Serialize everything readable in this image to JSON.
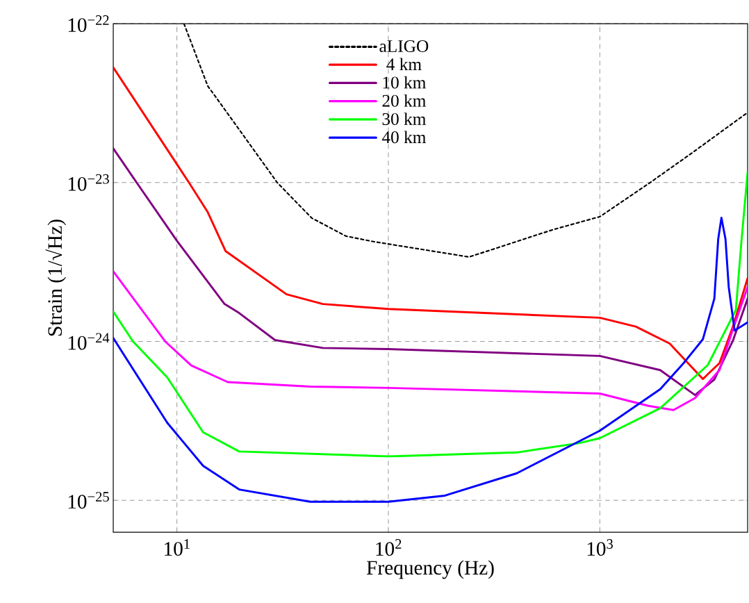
{
  "chart_data": {
    "type": "line",
    "xlabel": "Frequency (Hz)",
    "ylabel": "Strain (1/√Hz)",
    "log": "xy",
    "grid": true,
    "legend": "top",
    "marker": "none",
    "xlim": [
      5,
      5000
    ],
    "ylim": [
      6.3e-26,
      1e-22
    ],
    "xticks": [
      {
        "value": 10,
        "label": "10$^{1}$"
      },
      {
        "value": 100,
        "label": "10$^{2}$"
      },
      {
        "value": 1000,
        "label": "10$^{3}$"
      }
    ],
    "yticks": [
      {
        "value": 1e-25,
        "label": "10$^{−25}$"
      },
      {
        "value": 1e-24,
        "label": "10$^{−24}$"
      },
      {
        "value": 1e-23,
        "label": "10$^{−23}$"
      },
      {
        "value": 1e-22,
        "label": "10$^{−22}$"
      }
    ],
    "series": [
      {
        "name": "aLIGO",
        "color": "#000000",
        "line_style": "dotted",
        "x": [
          10.8,
          14,
          20.4,
          29.8,
          43.4,
          63,
          85,
          241,
          600,
          1000,
          1730,
          2700,
          5000
        ],
        "values": [
          1e-22,
          4.05e-23,
          2.02e-23,
          1e-23,
          5.98e-24,
          4.6e-24,
          4.25e-24,
          3.4e-24,
          5.05e-24,
          6.1e-24,
          1e-23,
          1.52e-23,
          2.76e-23
        ]
      },
      {
        "name": "4 km",
        "color": "#ff0000",
        "x": [
          5,
          11.4,
          14,
          17,
          33,
          49,
          100,
          1000,
          1480,
          2140,
          3070,
          3680,
          4270,
          5000
        ],
        "values": [
          5.3e-23,
          1e-23,
          6.5e-24,
          3.7e-24,
          1.98e-24,
          1.72e-24,
          1.6e-24,
          1.41e-24,
          1.24e-24,
          9.7e-25,
          5.8e-25,
          7.3e-25,
          1.25e-24,
          2.5e-24
        ]
      },
      {
        "name": "10 km",
        "color": "#800080",
        "x": [
          5,
          6.45,
          10,
          16.8,
          19.7,
          29.1,
          49,
          100,
          1000,
          1930,
          2820,
          3480,
          4270,
          5000
        ],
        "values": [
          1.64e-23,
          1e-23,
          4.3e-24,
          1.72e-24,
          1.51e-24,
          1.02e-24,
          9.1e-25,
          8.95e-25,
          8.1e-25,
          6.6e-25,
          4.6e-25,
          5.75e-25,
          1.02e-24,
          1.86e-24
        ]
      },
      {
        "name": "20 km",
        "color": "#ff00ff",
        "x": [
          5,
          8.8,
          11.7,
          17.4,
          42.7,
          100,
          1000,
          1700,
          2230,
          2820,
          3680,
          4270,
          5000
        ],
        "values": [
          2.76e-24,
          1e-24,
          7.06e-25,
          5.55e-25,
          5.2e-25,
          5.1e-25,
          4.7e-25,
          3.93e-25,
          3.7e-25,
          4.4e-25,
          6.6e-25,
          1.2e-24,
          2.2e-24
        ]
      },
      {
        "name": "30 km",
        "color": "#00ff00",
        "x": [
          5,
          6.2,
          9.0,
          13.3,
          19.7,
          100,
          405,
          798,
          1000,
          1930,
          3240,
          4400,
          4670,
          5000
        ],
        "values": [
          1.54e-24,
          1e-24,
          5.94e-25,
          2.68e-25,
          2.03e-25,
          1.89e-25,
          2e-25,
          2.29e-25,
          2.46e-25,
          3.8e-25,
          7.1e-25,
          1.58e-24,
          4.2e-24,
          1.16e-23
        ]
      },
      {
        "name": "40 km",
        "color": "#0000ff",
        "x": [
          5,
          9.0,
          13.3,
          19.7,
          42.7,
          100,
          185,
          405,
          1000,
          1930,
          2490,
          3070,
          3480,
          3630,
          3760,
          3930,
          4070,
          4340,
          5000
        ],
        "values": [
          1.05e-24,
          3.08e-25,
          1.65e-25,
          1.17e-25,
          9.8e-26,
          9.8e-26,
          1.07e-25,
          1.48e-25,
          2.74e-25,
          5e-25,
          7.3e-25,
          1.03e-24,
          1.86e-24,
          4.4e-24,
          6e-24,
          4.4e-24,
          2.2e-24,
          1.17e-24,
          1.32e-24
        ]
      }
    ]
  }
}
